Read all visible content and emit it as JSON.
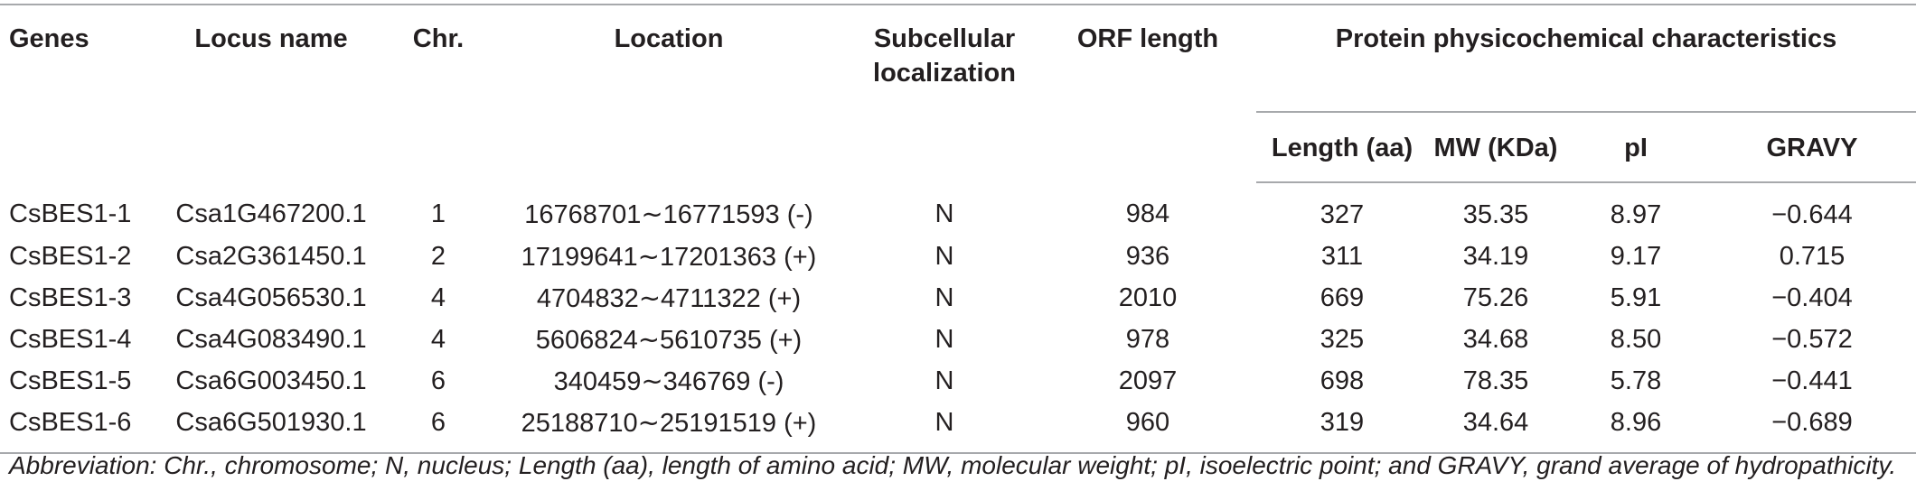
{
  "headers": {
    "genes": "Genes",
    "locus_name": "Locus name",
    "chr": "Chr.",
    "location": "Location",
    "subcellular_line1": "Subcellular",
    "subcellular_line2": "localization",
    "orf_length": "ORF length",
    "protein_group": "Protein physicochemical characteristics",
    "length_aa": "Length (aa)",
    "mw": "MW (KDa)",
    "pi": "pI",
    "gravy": "GRAVY"
  },
  "rows": [
    {
      "gene": "CsBES1-1",
      "locus": "Csa1G467200.1",
      "chr": "1",
      "location": "16768701∼16771593 (-)",
      "subcellular": "N",
      "orf": "984",
      "length": "327",
      "mw": "35.35",
      "pi": "8.97",
      "gravy": "−0.644"
    },
    {
      "gene": "CsBES1-2",
      "locus": "Csa2G361450.1",
      "chr": "2",
      "location": "17199641∼17201363 (+)",
      "subcellular": "N",
      "orf": "936",
      "length": "311",
      "mw": "34.19",
      "pi": "9.17",
      "gravy": "0.715"
    },
    {
      "gene": "CsBES1-3",
      "locus": "Csa4G056530.1",
      "chr": "4",
      "location": "4704832∼4711322 (+)",
      "subcellular": "N",
      "orf": "2010",
      "length": "669",
      "mw": "75.26",
      "pi": "5.91",
      "gravy": "−0.404"
    },
    {
      "gene": "CsBES1-4",
      "locus": "Csa4G083490.1",
      "chr": "4",
      "location": "5606824∼5610735 (+)",
      "subcellular": "N",
      "orf": "978",
      "length": "325",
      "mw": "34.68",
      "pi": "8.50",
      "gravy": "−0.572"
    },
    {
      "gene": "CsBES1-5",
      "locus": "Csa6G003450.1",
      "chr": "6",
      "location": "340459∼346769 (-)",
      "subcellular": "N",
      "orf": "2097",
      "length": "698",
      "mw": "78.35",
      "pi": "5.78",
      "gravy": "−0.441"
    },
    {
      "gene": "CsBES1-6",
      "locus": "Csa6G501930.1",
      "chr": "6",
      "location": "25188710∼25191519 (+)",
      "subcellular": "N",
      "orf": "960",
      "length": "319",
      "mw": "34.64",
      "pi": "8.96",
      "gravy": "−0.689"
    }
  ],
  "footnote": "Abbreviation: Chr., chromosome; N, nucleus; Length (aa), length of amino acid; MW, molecular weight; pI, isoelectric point; and GRAVY, grand average of hydropathicity."
}
